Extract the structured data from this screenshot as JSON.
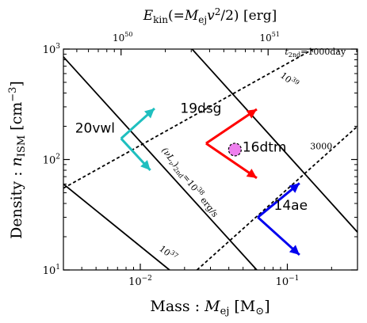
{
  "chart_data": {
    "type": "line",
    "xlabel_main": "Mass : ",
    "xlabel_sym": "M",
    "xlabel_sub": "ej",
    "xlabel_unit_open": " [M",
    "xlabel_unit_sub": "⊙",
    "xlabel_unit_close": "]",
    "ylabel_main": "Density : ",
    "ylabel_sym": "n",
    "ylabel_sub": "ISM",
    "ylabel_unit": " [cm",
    "ylabel_unit_exp": "−3",
    "ylabel_unit_close": "]",
    "toplabel_sym": "E",
    "toplabel_sub": "kin",
    "toplabel_mid": "(=",
    "toplabel_m": "M",
    "toplabel_msub": "ej",
    "toplabel_v": "v",
    "toplabel_vexp": "2",
    "toplabel_end": "/2) [erg]",
    "xscale": "log",
    "yscale": "log",
    "xlim": [
      0.003,
      0.3
    ],
    "ylim": [
      10,
      1000
    ],
    "x_ticks": [
      {
        "value": 0.01,
        "base": "10",
        "exp": "−2"
      },
      {
        "value": 0.1,
        "base": "10",
        "exp": "−1"
      }
    ],
    "y_ticks": [
      {
        "value": 10,
        "base": "10",
        "exp": "1"
      },
      {
        "value": 100,
        "base": "10",
        "exp": "2"
      },
      {
        "value": 1000,
        "base": "10",
        "exp": "3"
      }
    ],
    "top_ticks": [
      {
        "mass": 0.0074,
        "base": "10",
        "exp": "50"
      },
      {
        "mass": 0.074,
        "base": "10",
        "exp": "51"
      }
    ],
    "energy_lines": [
      {
        "name": "10^37",
        "points": [
          [
            0.003,
            60
          ],
          [
            0.0158,
            10
          ]
        ]
      },
      {
        "name": "10^38",
        "points": [
          [
            0.003,
            850
          ],
          [
            0.062,
            10
          ]
        ]
      },
      {
        "name": "10^39",
        "points": [
          [
            0.0225,
            1000
          ],
          [
            0.3,
            22
          ]
        ]
      }
    ],
    "time_lines": [
      {
        "name": "1000day",
        "points": [
          [
            0.003,
            55
          ],
          [
            0.15,
            1000
          ]
        ]
      },
      {
        "name": "3000",
        "points": [
          [
            0.0243,
            10
          ],
          [
            0.3,
            200
          ]
        ]
      }
    ],
    "line_labels": [
      {
        "x": 0.015,
        "y": 13.5,
        "base": "10",
        "exp": "37",
        "angle": 38
      },
      {
        "x": 0.1,
        "y": 500,
        "base": "10",
        "exp": "39",
        "angle": 38
      },
      {
        "x": 0.155,
        "y": 890,
        "sub": "2nd",
        "sym": "t",
        "text": "=1000day",
        "angle": 0
      },
      {
        "x": 0.17,
        "y": 124,
        "text": "3000",
        "angle": 0
      }
    ],
    "lum_label": {
      "x": 0.021,
      "y": 60,
      "part1": "(νL",
      "sub1": "ν",
      "part2": ")",
      "sub2": "2nd",
      "part3": "=10",
      "exp": "38",
      "part4": " erg/s",
      "angle": 52
    },
    "objects": [
      {
        "name": "20vwl",
        "color": "#1fbfbf",
        "center": [
          0.0074,
          155
        ],
        "tips": [
          [
            0.0125,
            290
          ],
          [
            0.0117,
            80
          ]
        ],
        "label_x": 0.0036,
        "label_y": 175
      },
      {
        "name": "19dsg",
        "color": "#ff0000",
        "center": [
          0.028,
          140
        ],
        "tips": [
          [
            0.062,
            285
          ],
          [
            0.062,
            68
          ]
        ],
        "label_x": 0.0187,
        "label_y": 265
      },
      {
        "name": "14ae",
        "color": "#0000ee",
        "center": [
          0.063,
          30
        ],
        "tips": [
          [
            0.121,
            61
          ],
          [
            0.121,
            13.7
          ]
        ],
        "label_x": 0.081,
        "label_y": 35
      }
    ],
    "point": {
      "name": "16dtm",
      "color": "#ee80ee",
      "x": 0.044,
      "y": 123,
      "label_x": 0.0495,
      "label_y": 118
    }
  }
}
